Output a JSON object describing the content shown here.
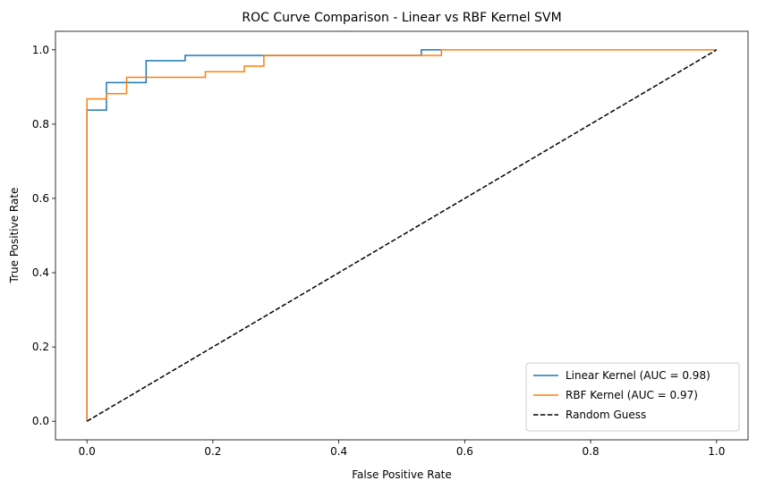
{
  "chart_data": {
    "type": "line",
    "title": "ROC Curve Comparison - Linear vs RBF Kernel SVM",
    "xlabel": "False Positive Rate",
    "ylabel": "True Positive Rate",
    "xlim": [
      -0.05,
      1.05
    ],
    "ylim": [
      -0.05,
      1.05
    ],
    "xticks": [
      "0.0",
      "0.2",
      "0.4",
      "0.6",
      "0.8",
      "1.0"
    ],
    "yticks": [
      "0.0",
      "0.2",
      "0.4",
      "0.6",
      "0.8",
      "1.0"
    ],
    "grid": false,
    "legend_position": "lower-right",
    "series": [
      {
        "name": "Linear Kernel (AUC = 0.98)",
        "color": "#1f77b4",
        "dash": "solid",
        "x": [
          0,
          0,
          0.031,
          0.031,
          0.094,
          0.094,
          0.156,
          0.156,
          0.531,
          0.531,
          1.0
        ],
        "y": [
          0,
          0.838,
          0.838,
          0.912,
          0.912,
          0.971,
          0.971,
          0.985,
          0.985,
          1.0,
          1.0
        ]
      },
      {
        "name": "RBF Kernel (AUC = 0.97)",
        "color": "#ff7f0e",
        "dash": "solid",
        "x": [
          0,
          0,
          0.031,
          0.031,
          0.063,
          0.063,
          0.188,
          0.188,
          0.25,
          0.25,
          0.281,
          0.281,
          0.563,
          0.563,
          1.0
        ],
        "y": [
          0,
          0.868,
          0.868,
          0.882,
          0.882,
          0.926,
          0.926,
          0.941,
          0.941,
          0.956,
          0.956,
          0.985,
          0.985,
          1.0,
          1.0
        ]
      },
      {
        "name": "Random Guess",
        "color": "#000000",
        "dash": "dashed",
        "x": [
          0,
          1
        ],
        "y": [
          0,
          1
        ]
      }
    ]
  }
}
